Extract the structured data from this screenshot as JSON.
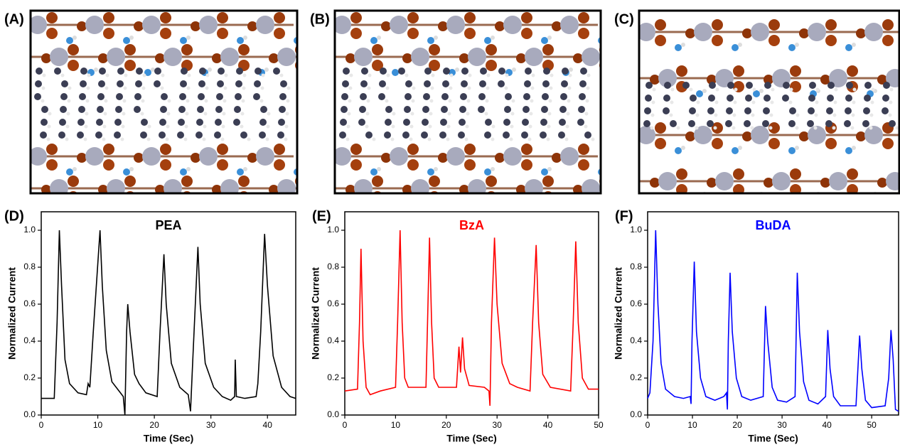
{
  "structure_panels": [
    {
      "label": "(A)"
    },
    {
      "label": "(B)"
    },
    {
      "label": "(C)"
    }
  ],
  "chart_data": [
    {
      "type": "line",
      "panel_label": "(D)",
      "title": "PEA",
      "xlabel": "Time (Sec)",
      "ylabel": "Normalized Current",
      "x": [
        0,
        2.3,
        2.8,
        3.2,
        3.6,
        4.2,
        5,
        6.5,
        8,
        8.3,
        8.6,
        9.2,
        10.4,
        10.8,
        11.5,
        12.5,
        14,
        14.5,
        14.8,
        15.1,
        15.3,
        15.7,
        16.5,
        17.3,
        18.5,
        20.5,
        21.0,
        21.7,
        22.1,
        23,
        24.5,
        26,
        26.4,
        26.8,
        27.7,
        28.1,
        29,
        30.5,
        32,
        33.5,
        34.2,
        34.3,
        34.5,
        36,
        38,
        38.3,
        38.8,
        39.5,
        40,
        41,
        42.5,
        44,
        45
      ],
      "series": [
        {
          "color": "#000000",
          "values": [
            0.09,
            0.09,
            0.5,
            1.0,
            0.7,
            0.3,
            0.17,
            0.12,
            0.11,
            0.17,
            0.15,
            0.45,
            1.0,
            0.7,
            0.35,
            0.18,
            0.12,
            0.1,
            0.0,
            0.45,
            0.6,
            0.45,
            0.22,
            0.17,
            0.12,
            0.1,
            0.45,
            0.87,
            0.6,
            0.28,
            0.15,
            0.11,
            0.02,
            0.3,
            0.91,
            0.6,
            0.28,
            0.15,
            0.1,
            0.08,
            0.1,
            0.3,
            0.1,
            0.09,
            0.1,
            0.17,
            0.45,
            0.98,
            0.7,
            0.32,
            0.15,
            0.1,
            0.09
          ]
        }
      ],
      "xlim": [
        0,
        45
      ],
      "ylim": [
        0,
        1.1
      ],
      "xticks": [
        0,
        10,
        20,
        30,
        40
      ],
      "yticks": [
        {
          "value": 0,
          "label": "0.0"
        },
        0.2,
        0.4,
        0.6,
        0.8,
        {
          "value": 1,
          "label": "1.0"
        }
      ]
    },
    {
      "type": "line",
      "panel_label": "(E)",
      "title": "BzA",
      "xlabel": "Time (Sec)",
      "ylabel": "Normalized Current",
      "x": [
        0,
        2.5,
        2.9,
        3.2,
        3.6,
        4.2,
        5,
        7,
        10,
        10.4,
        10.9,
        11.3,
        11.8,
        12.5,
        16,
        16.3,
        16.7,
        17.1,
        17.6,
        18.5,
        22,
        22.5,
        22.8,
        23.2,
        23.6,
        24.5,
        27.5,
        28.4,
        28.6,
        28.9,
        29.5,
        30,
        31,
        32.5,
        34,
        36.5,
        37,
        37.7,
        38.2,
        39,
        40.5,
        44.5,
        45,
        45.5,
        46,
        46.8,
        48,
        50
      ],
      "series": [
        {
          "color": "#ff0000",
          "values": [
            0.13,
            0.14,
            0.5,
            0.9,
            0.4,
            0.15,
            0.11,
            0.13,
            0.15,
            0.5,
            1.0,
            0.5,
            0.2,
            0.15,
            0.15,
            0.5,
            0.96,
            0.5,
            0.2,
            0.15,
            0.15,
            0.37,
            0.23,
            0.42,
            0.25,
            0.16,
            0.15,
            0.13,
            0.05,
            0.5,
            0.96,
            0.6,
            0.28,
            0.17,
            0.15,
            0.13,
            0.5,
            0.92,
            0.5,
            0.22,
            0.15,
            0.13,
            0.5,
            0.94,
            0.5,
            0.2,
            0.14,
            0.14
          ]
        }
      ],
      "xlim": [
        0,
        50
      ],
      "ylim": [
        0,
        1.1
      ],
      "xticks": [
        0,
        10,
        20,
        30,
        40,
        50
      ],
      "yticks": [
        {
          "value": 0,
          "label": "0.0"
        },
        0.2,
        0.4,
        0.6,
        0.8,
        {
          "value": 1,
          "label": "1.0"
        }
      ]
    },
    {
      "type": "line",
      "panel_label": "(F)",
      "title": "BuDA",
      "xlabel": "Time (Sec)",
      "ylabel": "Normalized Current",
      "x": [
        0,
        0.5,
        1.2,
        1.8,
        2.3,
        3,
        4,
        6,
        8,
        9.5,
        9.7,
        9.9,
        10.4,
        10.9,
        11.8,
        13,
        15,
        17,
        17.6,
        17.8,
        18.0,
        18.4,
        18.9,
        19.8,
        21,
        23,
        25.8,
        26.3,
        26.8,
        27.8,
        29,
        31,
        32.9,
        33.4,
        33.9,
        34.8,
        36,
        38,
        39.7,
        40.2,
        40.7,
        41.5,
        43,
        46.5,
        47.3,
        47.8,
        48.6,
        50,
        53,
        53.8,
        54.3,
        54.8,
        55.3,
        56
      ],
      "series": [
        {
          "color": "#0000ff",
          "values": [
            0.09,
            0.12,
            0.4,
            1.0,
            0.6,
            0.28,
            0.14,
            0.1,
            0.09,
            0.1,
            0.06,
            0.4,
            0.83,
            0.45,
            0.2,
            0.1,
            0.08,
            0.1,
            0.12,
            0.03,
            0.4,
            0.77,
            0.45,
            0.2,
            0.1,
            0.08,
            0.1,
            0.59,
            0.4,
            0.15,
            0.08,
            0.07,
            0.1,
            0.77,
            0.45,
            0.18,
            0.08,
            0.06,
            0.1,
            0.46,
            0.25,
            0.1,
            0.05,
            0.05,
            0.43,
            0.25,
            0.08,
            0.04,
            0.05,
            0.2,
            0.46,
            0.3,
            0.03,
            0.02
          ]
        }
      ],
      "xlim": [
        0,
        56
      ],
      "ylim": [
        0,
        1.1
      ],
      "xticks": [
        0,
        10,
        20,
        30,
        40,
        50
      ],
      "yticks": [
        {
          "value": 0,
          "label": "0.0"
        },
        0.2,
        0.4,
        0.6,
        0.8,
        {
          "value": 1,
          "label": "1.0"
        }
      ]
    }
  ]
}
